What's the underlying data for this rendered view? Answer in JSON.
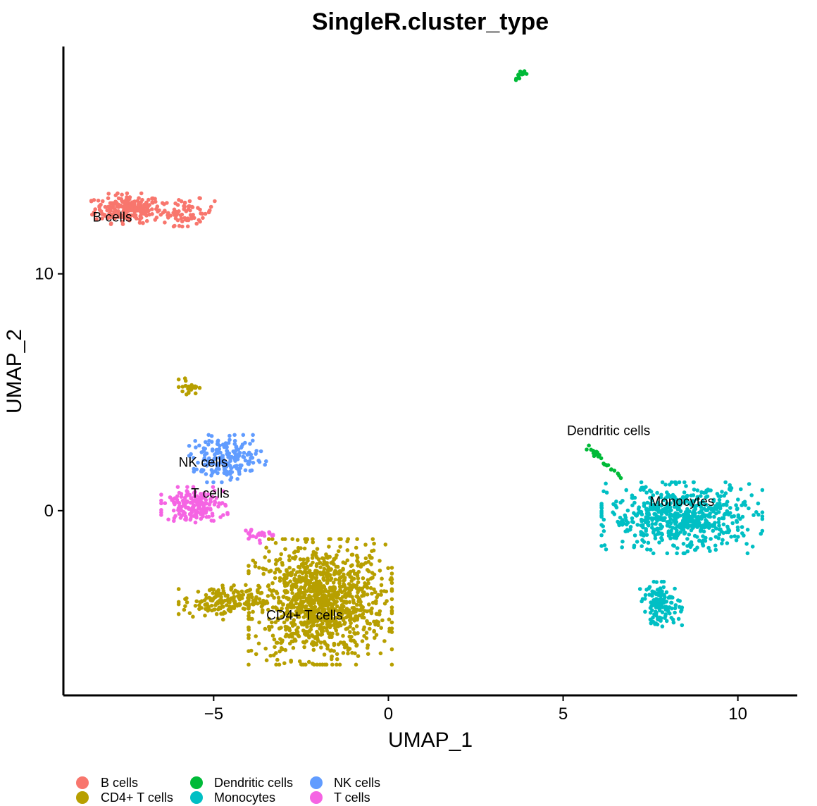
{
  "chart_data": {
    "type": "scatter",
    "title": "SingleR.cluster_type",
    "xlabel": "UMAP_1",
    "ylabel": "UMAP_2",
    "xlim": [
      -9.3,
      11.7
    ],
    "ylim": [
      -7.8,
      19.6
    ],
    "xticks": [
      -5,
      0,
      5,
      10
    ],
    "xtick_labels": [
      "−5",
      "0",
      "5",
      "10"
    ],
    "yticks": [
      0,
      10
    ],
    "ytick_labels": [
      "0",
      "10"
    ],
    "grid": false,
    "legend_position": "bottom",
    "series": [
      {
        "name": "B cells",
        "color": "#F8766D",
        "clusters": [
          {
            "shape": "blob",
            "x": [
              -8.5,
              -6.4
            ],
            "y": [
              12.1,
              13.4
            ],
            "n": 230
          },
          {
            "shape": "blob",
            "x": [
              -6.6,
              -4.9
            ],
            "y": [
              12.0,
              13.2
            ],
            "n": 70
          }
        ]
      },
      {
        "name": "CD4+ T cells",
        "color": "#B79F00",
        "clusters": [
          {
            "shape": "blob",
            "x": [
              -4.0,
              0.1
            ],
            "y": [
              -6.5,
              -1.2
            ],
            "n": 1150
          },
          {
            "shape": "blob",
            "x": [
              -6.0,
              -3.6
            ],
            "y": [
              -4.6,
              -3.1
            ],
            "n": 160
          },
          {
            "shape": "blob",
            "x": [
              -6.0,
              -5.4
            ],
            "y": [
              4.9,
              5.6
            ],
            "n": 25
          }
        ]
      },
      {
        "name": "Dendritic cells",
        "color": "#00BA38",
        "clusters": [
          {
            "shape": "line",
            "from": [
              5.65,
              2.8
            ],
            "to": [
              6.75,
              1.2
            ],
            "n": 28
          },
          {
            "shape": "line",
            "from": [
              3.65,
              18.3
            ],
            "to": [
              3.9,
              18.55
            ],
            "n": 14
          }
        ]
      },
      {
        "name": "Monocytes",
        "color": "#00BFC4",
        "clusters": [
          {
            "shape": "blob",
            "x": [
              6.1,
              10.7
            ],
            "y": [
              -1.8,
              1.2
            ],
            "n": 620
          },
          {
            "shape": "blob",
            "x": [
              7.2,
              8.4
            ],
            "y": [
              -4.9,
              -3.0
            ],
            "n": 130
          }
        ]
      },
      {
        "name": "NK cells",
        "color": "#619CFF",
        "clusters": [
          {
            "shape": "blob",
            "x": [
              -5.7,
              -3.5
            ],
            "y": [
              1.2,
              3.2
            ],
            "n": 190
          }
        ]
      },
      {
        "name": "T cells",
        "color": "#F564E3",
        "clusters": [
          {
            "shape": "blob",
            "x": [
              -6.5,
              -4.6
            ],
            "y": [
              -0.5,
              1.0
            ],
            "n": 180
          },
          {
            "shape": "blob",
            "x": [
              -4.2,
              -3.3
            ],
            "y": [
              -1.4,
              -0.6
            ],
            "n": 25
          }
        ]
      }
    ],
    "cluster_labels": [
      {
        "text": "B cells",
        "x": -7.9,
        "y": 12.2
      },
      {
        "text": "NK cells",
        "x": -5.3,
        "y": 1.85
      },
      {
        "text": "T cells",
        "x": -5.1,
        "y": 0.55
      },
      {
        "text": "CD4+ T cells",
        "x": -2.4,
        "y": -4.6
      },
      {
        "text": "Dendritic cells",
        "x": 6.3,
        "y": 3.2
      },
      {
        "text": "Monocytes",
        "x": 8.4,
        "y": 0.2
      }
    ],
    "legend": [
      "B cells",
      "CD4+ T cells",
      "Dendritic cells",
      "Monocytes",
      "NK cells",
      "T cells"
    ]
  }
}
